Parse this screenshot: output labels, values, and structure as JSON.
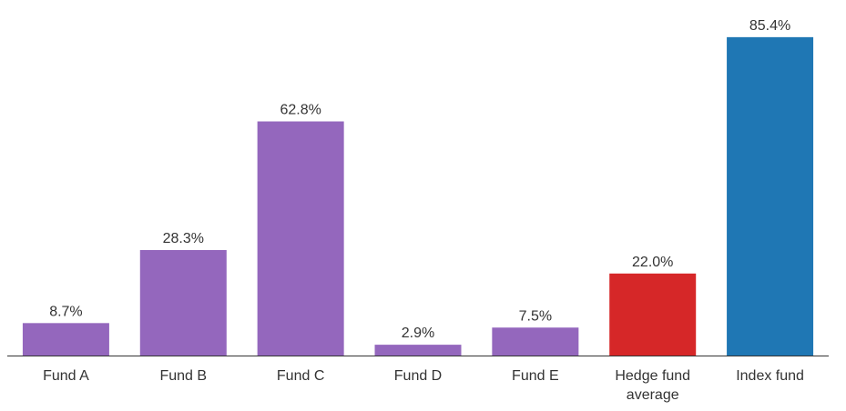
{
  "chart_data": {
    "type": "bar",
    "title": "",
    "xlabel": "",
    "ylabel": "",
    "ylim": [
      0,
      90
    ],
    "grid": false,
    "legend": "none",
    "categories": [
      "Fund A",
      "Fund B",
      "Fund C",
      "Fund D",
      "Fund E",
      "Hedge fund average",
      "Index fund"
    ],
    "tick_labels": [
      [
        "Fund A"
      ],
      [
        "Fund B"
      ],
      [
        "Fund C"
      ],
      [
        "Fund D"
      ],
      [
        "Fund E"
      ],
      [
        "Hedge fund",
        "average"
      ],
      [
        "Index fund"
      ]
    ],
    "values": [
      8.7,
      28.3,
      62.8,
      2.9,
      7.5,
      22.0,
      85.4
    ],
    "data_labels": [
      "8.7%",
      "28.3%",
      "62.8%",
      "2.9%",
      "7.5%",
      "22.0%",
      "85.4%"
    ],
    "colors": [
      "#9467bd",
      "#9467bd",
      "#9467bd",
      "#9467bd",
      "#9467bd",
      "#d62728",
      "#1f77b4"
    ]
  }
}
